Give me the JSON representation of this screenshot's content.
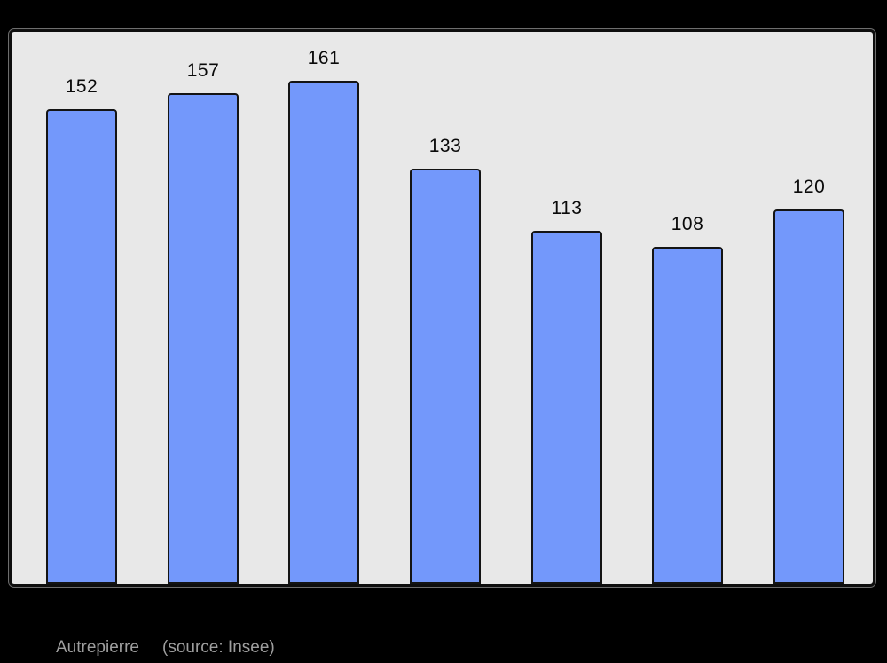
{
  "page": {
    "background_color": "#000000"
  },
  "caption": {
    "title": "Autrepierre",
    "source": "(source: Insee)",
    "text_color": "#9e9e9e"
  },
  "chart_data": {
    "type": "bar",
    "title": "",
    "xlabel": "",
    "ylabel": "",
    "values": [
      152,
      157,
      161,
      133,
      113,
      108,
      120
    ],
    "bar_labels": [
      "152",
      "157",
      "161",
      "133",
      "113",
      "108",
      "120"
    ],
    "categories": [
      "",
      "",
      "",
      "",
      "",
      "",
      ""
    ],
    "ylim": [
      0,
      177
    ],
    "grid": false,
    "legend": false,
    "bar_color": "#7398fb",
    "bar_border_color": "#141414",
    "plot_background": "#e8e8e8",
    "frame_border_color": "#0e0e0e",
    "label_color": "#0a0a0a"
  }
}
